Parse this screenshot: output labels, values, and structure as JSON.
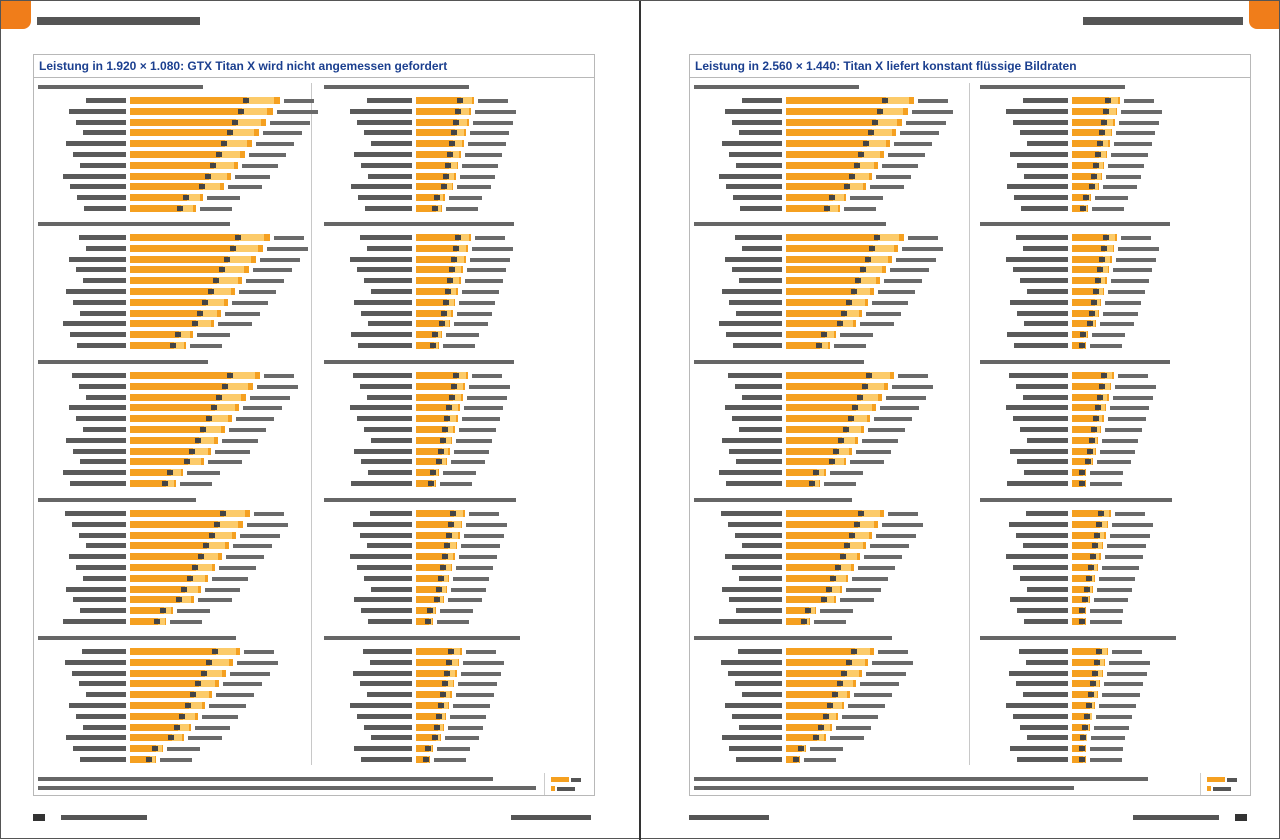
{
  "spread": {
    "left": {
      "title": "Leistung in 1.920 × 1.080: GTX Titan X wird nicht angemessen gefordert",
      "accent": "#f07d1a",
      "title_color": "#1b3f8f"
    },
    "right": {
      "title": "Leistung in 2.560 × 1.440: Titan X liefert konstant flüssige Bildraten",
      "accent": "#f07d1a",
      "title_color": "#1b3f8f"
    }
  },
  "colors": {
    "bar_primary": "#f5a020",
    "bar_secondary": "#fccb6a",
    "text_placeholder": "#5a5a5a"
  }
}
